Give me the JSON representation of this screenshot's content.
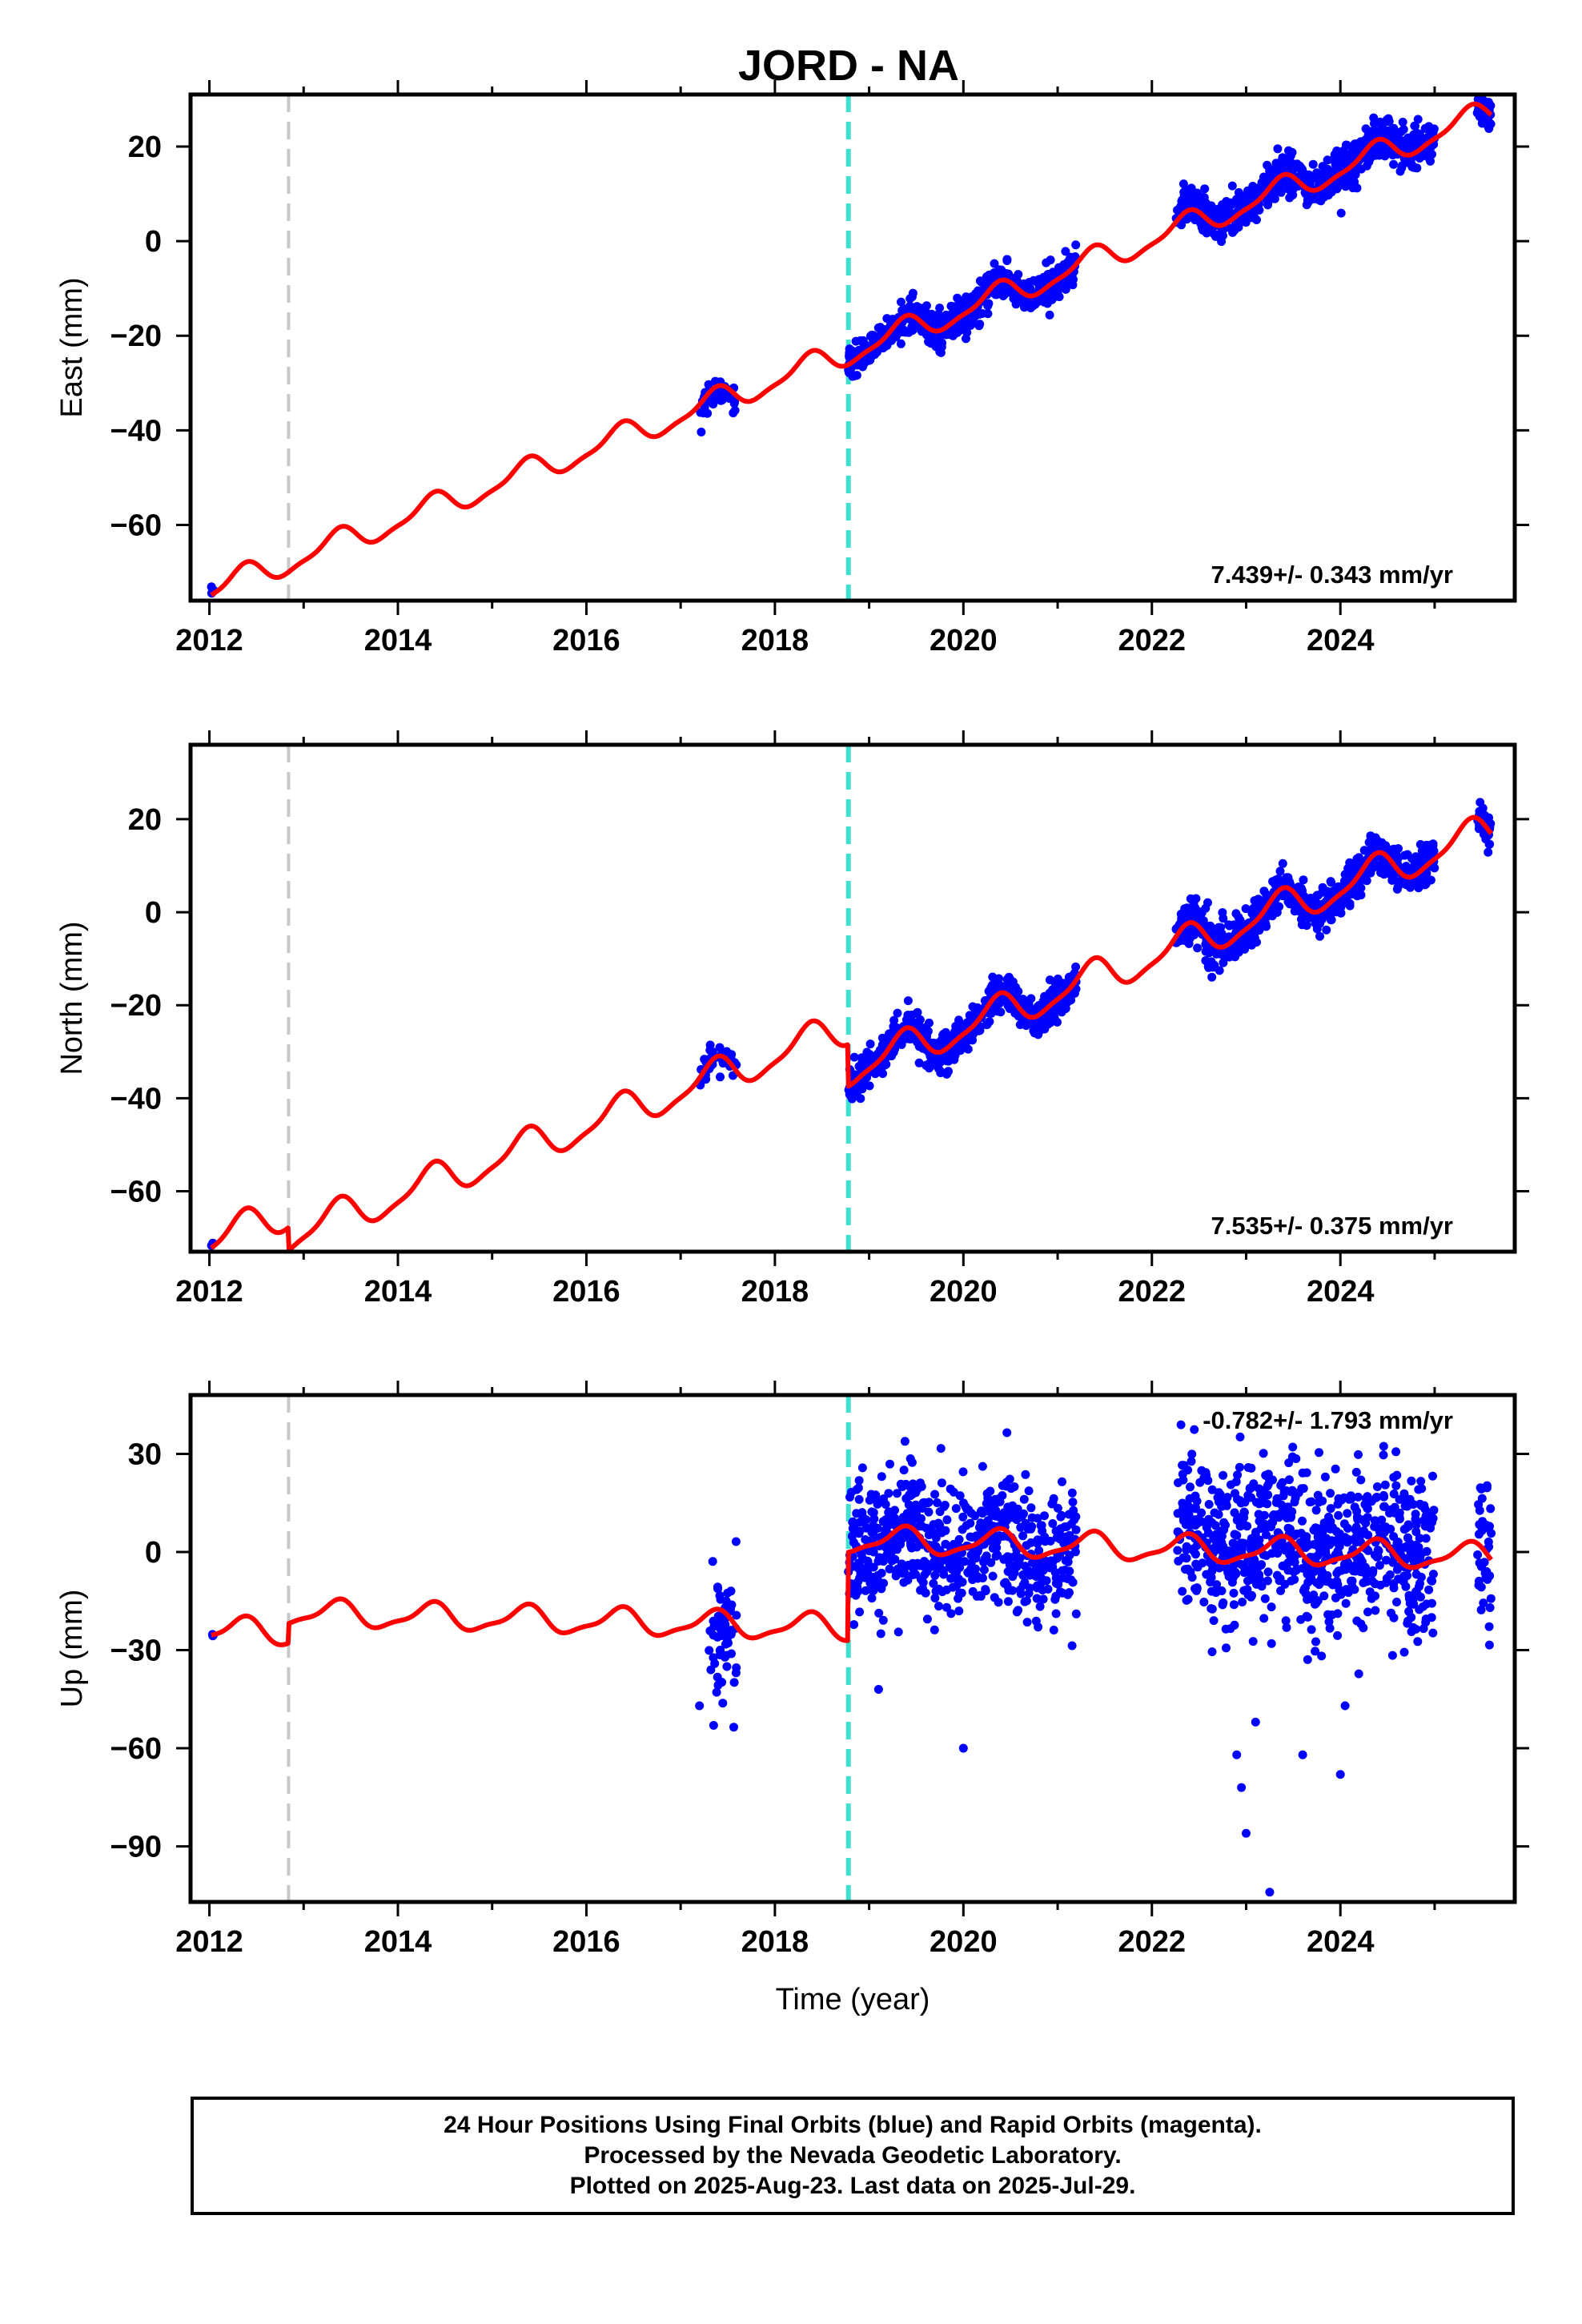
{
  "chart_data": {
    "type": "scatter",
    "title": "JORD - NA",
    "xlabel": "Time (year)",
    "xlim": [
      2011.8,
      2025.85
    ],
    "x_ticks": [
      "2012",
      "2014",
      "2016",
      "2018",
      "2020",
      "2022",
      "2024"
    ],
    "x_tick_values": [
      2012,
      2014,
      2016,
      2018,
      2020,
      2022,
      2024
    ],
    "vertical_markers": [
      {
        "x": 2012.84,
        "color": "#c8c8c8",
        "style": "dashed"
      },
      {
        "x": 2018.78,
        "color": "#40e0d0",
        "style": "dashed"
      }
    ],
    "colors": {
      "points": "#0000ff",
      "model": "#ff0000"
    },
    "panels": [
      {
        "ylabel": "East (mm)",
        "ylim": [
          -76,
          31
        ],
        "y_ticks": [
          "20",
          "0",
          "−20",
          "−40",
          "−60"
        ],
        "y_tick_values": [
          20,
          0,
          -20,
          -40,
          -60
        ],
        "rate_label": "7.439+/- 0.343 mm/yr",
        "rate_position": "bottom-right",
        "model": {
          "slope": 7.439,
          "y_at_2012": -74,
          "amp1": 2.6,
          "amp2": 0.8,
          "steps": [
            {
              "x": 2012.84,
              "dy": 0
            },
            {
              "x": 2018.78,
              "dy": 0
            }
          ]
        },
        "point_segments": [
          {
            "x_start": 2012.02,
            "x_end": 2012.06,
            "n": 3,
            "noise": 0.6,
            "offset": 0
          },
          {
            "x_start": 2017.2,
            "x_end": 2017.6,
            "n": 45,
            "noise": 1.8,
            "offset": -1.5
          },
          {
            "x_start": 2018.78,
            "x_end": 2021.2,
            "n": 650,
            "noise": 1.9,
            "offset": 0
          },
          {
            "x_start": 2022.25,
            "x_end": 2025.0,
            "n": 780,
            "noise": 2.0,
            "offset": 0.5
          },
          {
            "x_start": 2025.45,
            "x_end": 2025.6,
            "n": 40,
            "noise": 1.8,
            "offset": 0
          }
        ]
      },
      {
        "ylabel": "North (mm)",
        "ylim": [
          -73,
          36
        ],
        "y_ticks": [
          "20",
          "0",
          "−20",
          "−40",
          "−60"
        ],
        "y_tick_values": [
          20,
          0,
          -20,
          -40,
          -60
        ],
        "rate_label": "7.535+/- 0.375 mm/yr",
        "rate_position": "bottom-right",
        "model": {
          "slope": 7.535,
          "y_at_2012": -71,
          "amp1": 3.6,
          "amp2": 1.0,
          "steps": [
            {
              "x": 2012.84,
              "dy": -5
            },
            {
              "x": 2018.78,
              "dy": -9
            }
          ]
        },
        "point_segments": [
          {
            "x_start": 2012.02,
            "x_end": 2012.06,
            "n": 3,
            "noise": 0.6,
            "offset": 0
          },
          {
            "x_start": 2017.2,
            "x_end": 2017.6,
            "n": 45,
            "noise": 2.0,
            "offset": 0
          },
          {
            "x_start": 2018.78,
            "x_end": 2021.2,
            "n": 650,
            "noise": 2.0,
            "offset": 0
          },
          {
            "x_start": 2022.25,
            "x_end": 2025.0,
            "n": 780,
            "noise": 2.1,
            "offset": 0
          },
          {
            "x_start": 2025.45,
            "x_end": 2025.6,
            "n": 40,
            "noise": 2.0,
            "offset": 0
          }
        ]
      },
      {
        "ylabel": "Up (mm)",
        "ylim": [
          -107,
          48
        ],
        "y_ticks": [
          "30",
          "0",
          "−30",
          "−60",
          "−90"
        ],
        "y_tick_values": [
          30,
          0,
          -30,
          -60,
          -90
        ],
        "rate_label": "-0.782+/- 1.793 mm/yr",
        "rate_position": "top-right",
        "model": {
          "slope": -0.782,
          "y_at_2012": -24,
          "amp1": 3.8,
          "amp2": 1.2,
          "steps": [
            {
              "x": 2012.84,
              "dy": 6
            },
            {
              "x": 2018.78,
              "dy": 27
            }
          ]
        },
        "point_segments": [
          {
            "x_start": 2012.02,
            "x_end": 2012.06,
            "n": 3,
            "noise": 0.6,
            "offset": 0
          },
          {
            "x_start": 2017.3,
            "x_end": 2017.6,
            "n": 60,
            "noise": 11,
            "offset": -5
          },
          {
            "x_start": 2018.78,
            "x_end": 2021.2,
            "n": 650,
            "noise": 10,
            "offset": 0
          },
          {
            "x_start": 2022.25,
            "x_end": 2025.0,
            "n": 780,
            "noise": 12,
            "offset": 2
          },
          {
            "x_start": 2025.45,
            "x_end": 2025.6,
            "n": 40,
            "noise": 11,
            "offset": 0
          }
        ],
        "outliers": [
          {
            "x": 2017.2,
            "y": -47
          },
          {
            "x": 2017.35,
            "y": -53
          },
          {
            "x": 2019.1,
            "y": -42
          },
          {
            "x": 2020.0,
            "y": -60
          },
          {
            "x": 2022.9,
            "y": -62
          },
          {
            "x": 2022.95,
            "y": -72
          },
          {
            "x": 2023.0,
            "y": -86
          },
          {
            "x": 2023.25,
            "y": -104
          },
          {
            "x": 2023.6,
            "y": -62
          },
          {
            "x": 2024.05,
            "y": -47
          },
          {
            "x": 2024.0,
            "y": -68
          },
          {
            "x": 2023.1,
            "y": -52
          }
        ]
      }
    ]
  },
  "footer": {
    "line1": "24 Hour Positions Using Final Orbits (blue) and Rapid Orbits (magenta).",
    "line2": "Processed by the Nevada Geodetic Laboratory.",
    "line3": "Plotted on 2025-Aug-23. Last data on 2025-Jul-29."
  }
}
